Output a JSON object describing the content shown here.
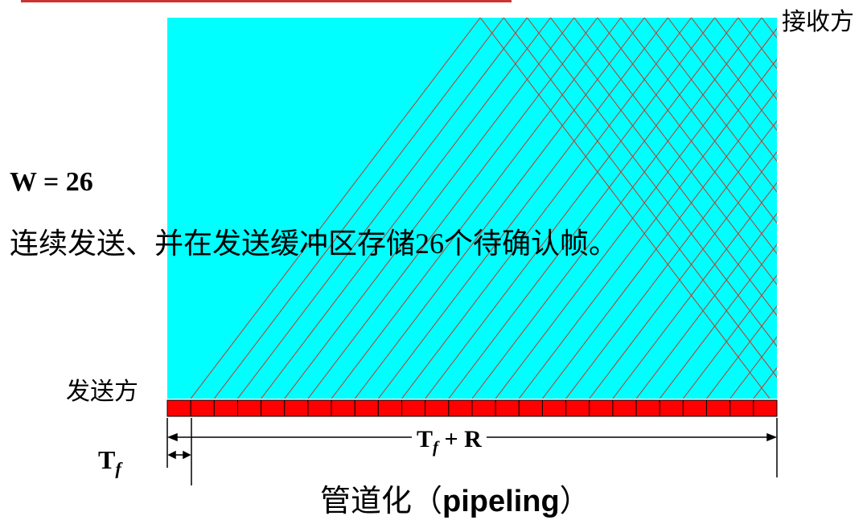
{
  "diagram": {
    "receiver_label": "接收方",
    "sender_label": "发送方",
    "window_label": "W = 26",
    "description": "连续发送、并在发送缓冲区存储26个待确认帧。",
    "tf_label": "T",
    "tf_sub": "f",
    "tfr_label_main": "T",
    "tfr_label_sub": "f",
    "tfr_label_rest": "+ R",
    "caption_cn": "管道化（",
    "caption_en": "pipeling",
    "caption_end": "）",
    "frame_count": 26,
    "colors": {
      "channel": "#00ffff",
      "frame": "#ff0000",
      "line": "#c0392b",
      "top_rule": "#cc3333"
    }
  }
}
